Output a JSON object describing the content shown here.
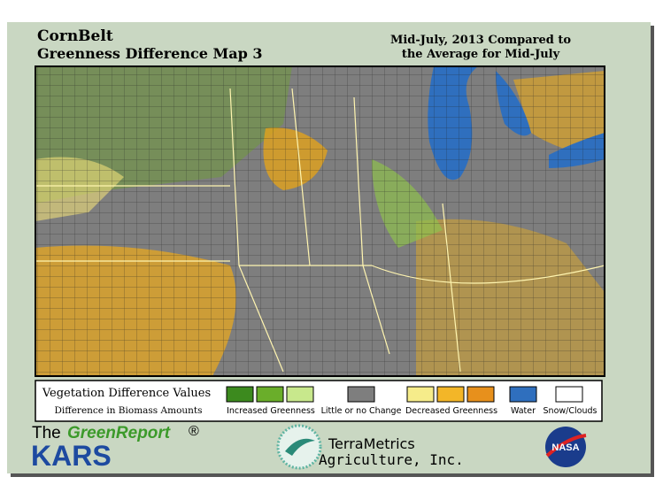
{
  "header": {
    "title": "CornBelt",
    "subtitle": "Greenness Difference Map 3",
    "period_line1": "Mid-July, 2013 Compared to",
    "period_line2": "the Average for Mid-July"
  },
  "legend": {
    "title": "Vegetation Difference Values",
    "subtitle": "Difference in Biomass Amounts",
    "increased": "Increased Greenness",
    "no_change": "Little or no Change",
    "decreased": "Decreased Greenness",
    "water": "Water",
    "snow": "Snow/Clouds"
  },
  "footer": {
    "the": "The",
    "green_report": "GreenReport",
    "registered": "®",
    "kars": "KARS",
    "terrametrics": "TerraMetrics",
    "agriculture": "Agriculture, Inc.",
    "nasa": "NASA"
  }
}
